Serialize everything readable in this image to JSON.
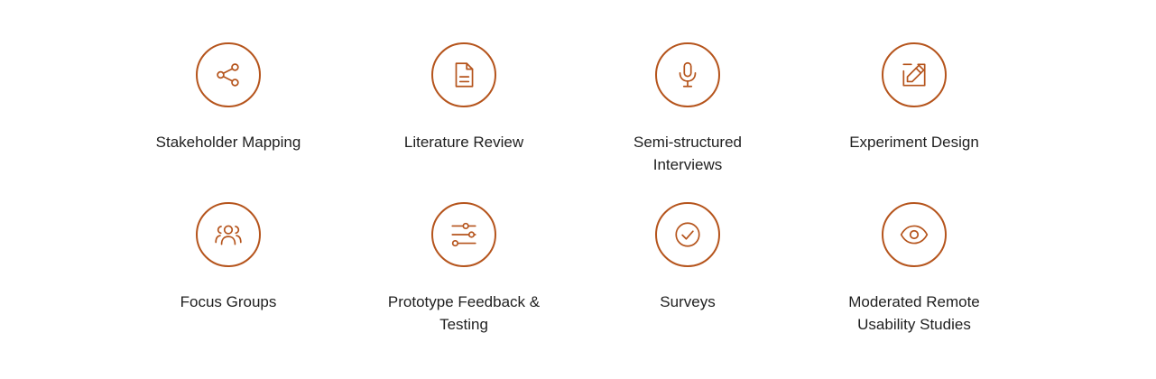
{
  "colors": {
    "accent": "#b5541c",
    "text": "#1f1f1f",
    "background": "#ffffff"
  },
  "methods": [
    {
      "label_lines": [
        "Stakeholder Mapping"
      ],
      "icon": "share-icon"
    },
    {
      "label_lines": [
        "Literature Review"
      ],
      "icon": "document-icon"
    },
    {
      "label_lines": [
        "Semi-structured",
        "Interviews"
      ],
      "icon": "microphone-icon"
    },
    {
      "label_lines": [
        "Experiment Design"
      ],
      "icon": "edit-square-icon"
    },
    {
      "label_lines": [
        "Focus Groups"
      ],
      "icon": "group-icon"
    },
    {
      "label_lines": [
        "Prototype Feedback &",
        "Testing"
      ],
      "icon": "sliders-icon"
    },
    {
      "label_lines": [
        "Surveys"
      ],
      "icon": "check-circle-icon"
    },
    {
      "label_lines": [
        "Moderated Remote",
        "Usability Studies"
      ],
      "icon": "eye-icon"
    }
  ]
}
